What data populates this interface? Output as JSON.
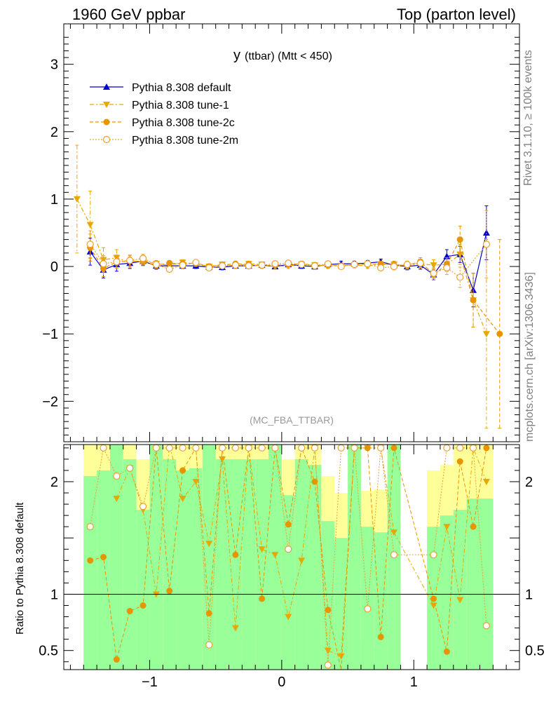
{
  "header": {
    "left": "1960 GeV ppbar",
    "right": "Top (parton level)"
  },
  "side_labels": {
    "rivet": "Rivet 3.1.10, ≥ 100k events",
    "mcplots": "mcplots.cern.ch [arXiv:1306.3436]"
  },
  "chart_data": [
    {
      "type": "line",
      "title_main": "y",
      "title_sub": "(ttbar) (Mtt < 450)",
      "watermark": "(MC_FBA_TTBAR)",
      "xlim": [
        -1.65,
        1.8
      ],
      "ylim": [
        -2.6,
        3.6
      ],
      "yticks": [
        -2,
        -1,
        0,
        1,
        2,
        3
      ],
      "xticks": [
        -1,
        0,
        1
      ],
      "grid": false,
      "legend_position": "top-left",
      "x": [
        -1.55,
        -1.45,
        -1.35,
        -1.25,
        -1.15,
        -1.05,
        -0.95,
        -0.85,
        -0.75,
        -0.65,
        -0.55,
        -0.45,
        -0.35,
        -0.25,
        -0.15,
        -0.05,
        0.05,
        0.15,
        0.25,
        0.35,
        0.45,
        0.55,
        0.65,
        0.75,
        0.85,
        0.95,
        1.05,
        1.15,
        1.25,
        1.35,
        1.45,
        1.55,
        1.65
      ],
      "series": [
        {
          "name": "Pythia 8.308 default",
          "color": "#0000cc",
          "marker": "triangle-up",
          "values": [
            null,
            0.22,
            -0.05,
            0.03,
            0.05,
            0.08,
            0.01,
            0.01,
            0.01,
            0.01,
            -0.01,
            -0.01,
            0.01,
            0.01,
            0.02,
            0.0,
            0.03,
            0.01,
            0.0,
            0.03,
            0.04,
            0.04,
            0.05,
            0.07,
            0.02,
            0.0,
            0.02,
            -0.12,
            0.15,
            0.18,
            -0.35,
            0.5,
            null
          ],
          "errors": [
            null,
            0.2,
            0.12,
            0.1,
            0.08,
            0.06,
            0.05,
            0.04,
            0.04,
            0.04,
            0.04,
            0.04,
            0.04,
            0.04,
            0.04,
            0.04,
            0.04,
            0.04,
            0.04,
            0.04,
            0.04,
            0.04,
            0.04,
            0.04,
            0.05,
            0.05,
            0.06,
            0.08,
            0.1,
            0.12,
            0.25,
            0.4,
            null
          ]
        },
        {
          "name": "Pythia 8.308 tune-1",
          "color": "#e8a800",
          "marker": "triangle-down",
          "values": [
            1.0,
            0.62,
            0.1,
            0.13,
            0.06,
            0.09,
            0.04,
            0.02,
            0.06,
            0.04,
            0.0,
            0.03,
            0.01,
            0.04,
            0.03,
            0.0,
            0.01,
            0.03,
            0.02,
            0.01,
            0.01,
            0.02,
            0.01,
            0.03,
            0.03,
            0.01,
            0.04,
            0.02,
            0.03,
            0.18,
            -0.5,
            -1.0,
            null
          ],
          "errors": [
            0.8,
            0.5,
            0.18,
            0.12,
            0.08,
            0.06,
            0.05,
            0.04,
            0.04,
            0.04,
            0.04,
            0.04,
            0.04,
            0.04,
            0.04,
            0.04,
            0.04,
            0.04,
            0.04,
            0.04,
            0.04,
            0.04,
            0.04,
            0.04,
            0.05,
            0.05,
            0.06,
            0.08,
            0.1,
            0.15,
            0.4,
            1.4,
            null
          ]
        },
        {
          "name": "Pythia 8.308 tune-2c",
          "color": "#e69500",
          "marker": "circle",
          "values": [
            null,
            0.28,
            -0.03,
            0.07,
            0.08,
            0.07,
            0.02,
            0.05,
            0.04,
            0.05,
            0.0,
            0.02,
            0.04,
            0.03,
            0.01,
            0.02,
            0.03,
            0.04,
            0.02,
            0.02,
            0.01,
            0.03,
            0.03,
            0.04,
            0.02,
            0.02,
            0.07,
            -0.12,
            0.03,
            0.4,
            -0.5,
            null,
            -1.0
          ],
          "errors": [
            null,
            0.2,
            0.12,
            0.1,
            0.08,
            0.06,
            0.05,
            0.04,
            0.04,
            0.04,
            0.04,
            0.04,
            0.04,
            0.04,
            0.04,
            0.04,
            0.04,
            0.04,
            0.04,
            0.04,
            0.04,
            0.04,
            0.04,
            0.04,
            0.05,
            0.05,
            0.06,
            0.08,
            0.1,
            0.2,
            0.4,
            null,
            1.4
          ]
        },
        {
          "name": "Pythia 8.308 tune-2m",
          "color": "#e8a030",
          "marker": "open-circle",
          "values": [
            null,
            0.33,
            0.04,
            0.07,
            0.09,
            0.12,
            0.03,
            -0.04,
            0.02,
            0.06,
            -0.02,
            0.01,
            0.02,
            0.01,
            0.02,
            0.04,
            0.05,
            0.03,
            0.01,
            0.04,
            0.0,
            0.03,
            0.04,
            -0.02,
            0.0,
            0.03,
            0.05,
            -0.1,
            -0.02,
            -0.16,
            null,
            0.33,
            null
          ],
          "errors": [
            null,
            0.2,
            0.12,
            0.1,
            0.08,
            0.06,
            0.05,
            0.04,
            0.04,
            0.04,
            0.04,
            0.04,
            0.04,
            0.04,
            0.04,
            0.04,
            0.04,
            0.04,
            0.04,
            0.04,
            0.04,
            0.04,
            0.04,
            0.04,
            0.05,
            0.05,
            0.06,
            0.08,
            0.1,
            0.15,
            null,
            0.5,
            null
          ]
        }
      ]
    },
    {
      "type": "line",
      "ylabel": "Ratio to Pythia 8.308 default",
      "xlim": [
        -1.65,
        1.8
      ],
      "ylim": [
        0.33,
        2.33
      ],
      "yticks": [
        0.5,
        1,
        2
      ],
      "xticks": [
        -1,
        0,
        1
      ],
      "reference_line": 1,
      "band_colors": {
        "inner": "#99ff99",
        "outer": "#ffff99"
      },
      "bands": [
        {
          "x0": -1.5,
          "x1": -1.4,
          "g": [
            0.33,
            2.05
          ],
          "y": [
            0.33,
            2.33
          ]
        },
        {
          "x0": -1.4,
          "x1": -1.3,
          "g": [
            0.33,
            2.1
          ],
          "y": [
            0.33,
            2.33
          ]
        },
        {
          "x0": -1.3,
          "x1": -1.2,
          "g": [
            0.33,
            2.33
          ],
          "y": [
            0.33,
            2.33
          ]
        },
        {
          "x0": -1.2,
          "x1": -1.1,
          "g": [
            0.33,
            2.2
          ],
          "y": [
            0.33,
            2.33
          ]
        },
        {
          "x0": -1.1,
          "x1": -1.0,
          "g": [
            0.33,
            1.75
          ],
          "y": [
            0.33,
            2.2
          ]
        },
        {
          "x0": -1.0,
          "x1": -0.9,
          "g": [
            0.33,
            2.33
          ],
          "y": [
            0.33,
            2.33
          ]
        },
        {
          "x0": -0.9,
          "x1": -0.8,
          "g": [
            0.33,
            2.2
          ],
          "y": [
            0.33,
            2.33
          ]
        },
        {
          "x0": -0.8,
          "x1": -0.7,
          "g": [
            0.33,
            2.1
          ],
          "y": [
            0.33,
            2.33
          ]
        },
        {
          "x0": -0.7,
          "x1": -0.6,
          "g": [
            0.33,
            2.12
          ],
          "y": [
            0.33,
            2.33
          ]
        },
        {
          "x0": -0.6,
          "x1": -0.5,
          "g": [
            0.33,
            2.33
          ],
          "y": [
            0.33,
            2.33
          ]
        },
        {
          "x0": -0.5,
          "x1": -0.4,
          "g": [
            0.33,
            2.2
          ],
          "y": [
            0.33,
            2.33
          ]
        },
        {
          "x0": -0.4,
          "x1": -0.3,
          "g": [
            0.33,
            2.2
          ],
          "y": [
            0.33,
            2.33
          ]
        },
        {
          "x0": -0.3,
          "x1": -0.2,
          "g": [
            0.33,
            2.2
          ],
          "y": [
            0.33,
            2.33
          ]
        },
        {
          "x0": -0.2,
          "x1": -0.1,
          "g": [
            0.33,
            2.2
          ],
          "y": [
            0.33,
            2.33
          ]
        },
        {
          "x0": -0.1,
          "x1": 0.0,
          "g": [
            0.33,
            2.33
          ],
          "y": [
            0.33,
            2.33
          ]
        },
        {
          "x0": 0.0,
          "x1": 0.1,
          "g": [
            0.33,
            1.88
          ],
          "y": [
            0.33,
            2.2
          ]
        },
        {
          "x0": 0.1,
          "x1": 0.2,
          "g": [
            0.33,
            2.2
          ],
          "y": [
            0.33,
            2.33
          ]
        },
        {
          "x0": 0.2,
          "x1": 0.3,
          "g": [
            0.33,
            2.15
          ],
          "y": [
            0.33,
            2.33
          ]
        },
        {
          "x0": 0.3,
          "x1": 0.4,
          "g": [
            0.33,
            1.65
          ],
          "y": [
            0.4,
            2.05
          ]
        },
        {
          "x0": 0.4,
          "x1": 0.5,
          "g": [
            0.33,
            1.5
          ],
          "y": [
            0.6,
            1.9
          ]
        },
        {
          "x0": 0.5,
          "x1": 0.6,
          "g": [
            0.33,
            2.33
          ],
          "y": [
            0.33,
            2.33
          ]
        },
        {
          "x0": 0.6,
          "x1": 0.7,
          "g": [
            0.33,
            1.6
          ],
          "y": [
            0.57,
            1.92
          ]
        },
        {
          "x0": 0.7,
          "x1": 0.8,
          "g": [
            0.33,
            1.55
          ],
          "y": [
            0.55,
            1.93
          ]
        },
        {
          "x0": 0.8,
          "x1": 0.9,
          "g": [
            0.33,
            2.33
          ],
          "y": [
            0.33,
            2.33
          ]
        },
        {
          "x0": 1.1,
          "x1": 1.2,
          "g": [
            0.33,
            1.6
          ],
          "y": [
            0.45,
            2.1
          ]
        },
        {
          "x0": 1.2,
          "x1": 1.3,
          "g": [
            0.33,
            1.7
          ],
          "y": [
            0.33,
            2.15
          ]
        },
        {
          "x0": 1.3,
          "x1": 1.4,
          "g": [
            0.33,
            1.75
          ],
          "y": [
            0.33,
            2.33
          ]
        },
        {
          "x0": 1.4,
          "x1": 1.5,
          "g": [
            0.33,
            1.85
          ],
          "y": [
            0.33,
            2.33
          ]
        },
        {
          "x0": 1.5,
          "x1": 1.6,
          "g": [
            0.33,
            1.85
          ],
          "y": [
            0.33,
            2.33
          ]
        }
      ],
      "x": [
        -1.45,
        -1.35,
        -1.25,
        -1.15,
        -1.05,
        -0.95,
        -0.85,
        -0.75,
        -0.65,
        -0.55,
        -0.45,
        -0.35,
        -0.25,
        -0.15,
        -0.05,
        0.05,
        0.15,
        0.25,
        0.35,
        0.45,
        0.55,
        0.65,
        0.75,
        0.85,
        1.15,
        1.25,
        1.35,
        1.45,
        1.55
      ],
      "series": [
        {
          "name": "Pythia 8.308 tune-1",
          "color": "#e8a800",
          "marker": "triangle-down",
          "values": [
            null,
            null,
            1.85,
            2.12,
            1.75,
            1.0,
            2.5,
            1.85,
            2.0,
            1.45,
            2.2,
            0.7,
            2.3,
            1.4,
            1.35,
            0.8,
            1.3,
            2.3,
            0.5,
            0.45,
            2.3,
            2.3,
            2.3,
            1.55,
            0.9,
            1.6,
            0.95,
            2.3,
            2.0
          ]
        },
        {
          "name": "Pythia 8.308 tune-2c",
          "color": "#e69500",
          "marker": "circle",
          "values": [
            1.3,
            1.33,
            0.42,
            0.85,
            0.9,
            2.3,
            1.03,
            2.1,
            2.3,
            0.83,
            2.3,
            1.35,
            2.3,
            0.96,
            2.3,
            1.62,
            2.3,
            2.0,
            0.86,
            0.3,
            2.3,
            2.3,
            0.62,
            2.3,
            0.96,
            0.49,
            2.18,
            1.6,
            2.3
          ]
        },
        {
          "name": "Pythia 8.308 tune-2m",
          "color": "#e8a030",
          "marker": "open-circle",
          "values": [
            1.6,
            2.3,
            2.05,
            2.12,
            1.78,
            2.3,
            2.3,
            2.3,
            2.3,
            0.55,
            2.3,
            2.3,
            2.3,
            2.3,
            2.3,
            1.4,
            2.3,
            2.3,
            0.37,
            2.3,
            2.3,
            0.87,
            2.3,
            1.35,
            1.35,
            2.3,
            2.3,
            2.3,
            0.72
          ]
        }
      ]
    }
  ]
}
